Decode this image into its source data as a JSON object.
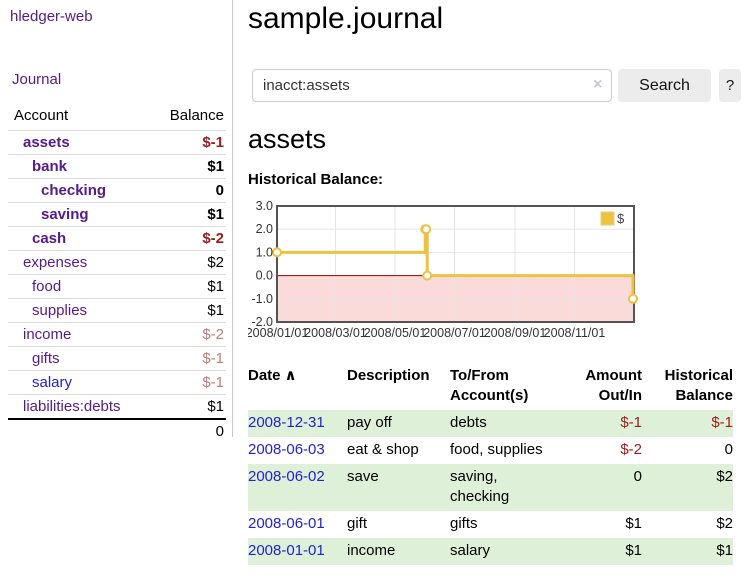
{
  "colors": {
    "link_purple": "#551a8b",
    "link_blue": "#2222cc",
    "negative_strong": "#9e1b1b",
    "negative_soft": "#c47878",
    "row_green": "#dff0d8",
    "chart_line_gold": "#edc240",
    "chart_negative_fill": "#fbdada",
    "chart_zero_line": "#8b0000"
  },
  "sidebar": {
    "brand": "hledger-web",
    "nav_journal": "Journal",
    "headers": {
      "account": "Account",
      "balance": "Balance"
    },
    "accounts": [
      {
        "name": "assets",
        "balance": "$-1",
        "level": 1,
        "emph": true,
        "bal_class": "neg-strong"
      },
      {
        "name": "bank",
        "balance": "$1",
        "level": 2,
        "emph": true,
        "bal_class": "pos-strong"
      },
      {
        "name": "checking",
        "balance": "0",
        "level": 3,
        "emph": true,
        "bal_class": "pos-strong"
      },
      {
        "name": "saving",
        "balance": "$1",
        "level": 3,
        "emph": true,
        "bal_class": "pos-strong"
      },
      {
        "name": "cash",
        "balance": "$-2",
        "level": 2,
        "emph": true,
        "bal_class": "neg-strong"
      },
      {
        "name": "expenses",
        "balance": "$2",
        "level": 1,
        "emph": false,
        "bal_class": "plain"
      },
      {
        "name": "food",
        "balance": "$1",
        "level": 2,
        "emph": false,
        "bal_class": "plain"
      },
      {
        "name": "supplies",
        "balance": "$1",
        "level": 2,
        "emph": false,
        "bal_class": "plain"
      },
      {
        "name": "income",
        "balance": "$-2",
        "level": 1,
        "emph": false,
        "bal_class": "neg-soft"
      },
      {
        "name": "gifts",
        "balance": "$-1",
        "level": 2,
        "emph": false,
        "bal_class": "neg-soft"
      },
      {
        "name": "salary",
        "balance": "$-1",
        "level": 2,
        "emph": false,
        "bal_class": "neg-soft",
        "link_color": "blue"
      },
      {
        "name": "liabilities:debts",
        "balance": "$1",
        "level": 1,
        "emph": false,
        "bal_class": "plain"
      }
    ],
    "total": "0"
  },
  "header": {
    "title": "sample.journal"
  },
  "search": {
    "value": "inacct:assets",
    "clear_icon": "×",
    "button_label": "Search",
    "help_label": "?"
  },
  "main": {
    "account_title": "assets",
    "chart_label": "Historical Balance:"
  },
  "chart_data": {
    "type": "line",
    "style": "steps",
    "title": "Historical Balance:",
    "legend": "$",
    "legend_position": "top-right",
    "ylim": [
      -2,
      3
    ],
    "y_ticks": [
      {
        "label": "3.0",
        "value": 3
      },
      {
        "label": "2.0",
        "value": 2
      },
      {
        "label": "1.0",
        "value": 1
      },
      {
        "label": "0.0",
        "value": 0
      },
      {
        "label": "-1.0",
        "value": -1
      },
      {
        "label": "-2.0",
        "value": -2
      }
    ],
    "x_ticks": [
      "2008/01/01",
      "2008/03/01",
      "2008/05/01",
      "2008/07/01",
      "2008/09/01",
      "2008/11/01"
    ],
    "x_range": [
      "2008-01-01",
      "2009-01-01"
    ],
    "grid": true,
    "series": [
      {
        "name": "$",
        "color": "#edc240",
        "points": [
          [
            "2008-01-01",
            1
          ],
          [
            "2008-06-01",
            2
          ],
          [
            "2008-06-02",
            2
          ],
          [
            "2008-06-03",
            0
          ],
          [
            "2008-12-31",
            -1
          ]
        ]
      }
    ]
  },
  "register": {
    "sort_icon": "∧",
    "headers": [
      "Date",
      "Description",
      "To/From Account(s)",
      "Amount Out/In",
      "Historical Balance"
    ],
    "rows": [
      {
        "date": "2008-12-31",
        "description": "pay off",
        "accounts": "debts",
        "amount": "$-1",
        "balance": "$-1",
        "amount_neg": true,
        "balance_neg": true,
        "shaded": true
      },
      {
        "date": "2008-06-03",
        "description": "eat & shop",
        "accounts": "food, supplies",
        "amount": "$-2",
        "balance": "0",
        "amount_neg": true,
        "balance_neg": false,
        "shaded": false
      },
      {
        "date": "2008-06-02",
        "description": "save",
        "accounts": "saving,\nchecking",
        "amount": "0",
        "balance": "$2",
        "amount_neg": false,
        "balance_neg": false,
        "shaded": true
      },
      {
        "date": "2008-06-01",
        "description": "gift",
        "accounts": "gifts",
        "amount": "$1",
        "balance": "$2",
        "amount_neg": false,
        "balance_neg": false,
        "shaded": false
      },
      {
        "date": "2008-01-01",
        "description": "income",
        "accounts": "salary",
        "amount": "$1",
        "balance": "$1",
        "amount_neg": false,
        "balance_neg": false,
        "shaded": true
      }
    ]
  }
}
